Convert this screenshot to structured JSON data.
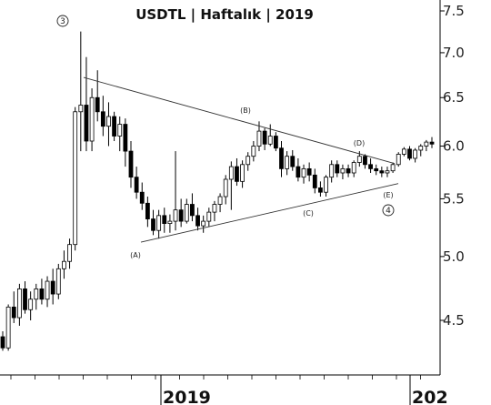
{
  "chart_data": {
    "type": "candlestick",
    "title": "USDTL | Haftalık | 2019",
    "y_scale": "log",
    "ylim": [
      4.22,
      7.6
    ],
    "y_ticks": [
      "7.5",
      "7.0",
      "6.5",
      "6.0",
      "5.5",
      "5.0",
      "4.5"
    ],
    "x_ticks": [
      "2019",
      "202"
    ],
    "wave_labels": [
      "3",
      "(A)",
      "(B)",
      "(C)",
      "(D)",
      "(E)",
      "4"
    ],
    "ohlc": [
      [
        4.38,
        4.42,
        4.28,
        4.3
      ],
      [
        4.3,
        4.62,
        4.28,
        4.6
      ],
      [
        4.6,
        4.72,
        4.48,
        4.52
      ],
      [
        4.52,
        4.78,
        4.46,
        4.74
      ],
      [
        4.74,
        4.8,
        4.55,
        4.58
      ],
      [
        4.58,
        4.72,
        4.5,
        4.66
      ],
      [
        4.66,
        4.78,
        4.58,
        4.74
      ],
      [
        4.74,
        4.82,
        4.62,
        4.66
      ],
      [
        4.66,
        4.84,
        4.6,
        4.8
      ],
      [
        4.8,
        4.9,
        4.62,
        4.7
      ],
      [
        4.7,
        4.94,
        4.66,
        4.9
      ],
      [
        4.9,
        5.05,
        4.82,
        4.96
      ],
      [
        4.96,
        5.15,
        4.9,
        5.1
      ],
      [
        5.1,
        6.4,
        5.05,
        6.35
      ],
      [
        6.35,
        7.25,
        5.95,
        6.42
      ],
      [
        6.42,
        6.95,
        5.95,
        6.05
      ],
      [
        6.05,
        6.6,
        5.95,
        6.5
      ],
      [
        6.5,
        6.8,
        6.25,
        6.35
      ],
      [
        6.35,
        6.52,
        6.1,
        6.2
      ],
      [
        6.2,
        6.45,
        6.0,
        6.3
      ],
      [
        6.3,
        6.35,
        6.05,
        6.1
      ],
      [
        6.1,
        6.3,
        5.95,
        6.22
      ],
      [
        6.22,
        6.28,
        5.8,
        5.95
      ],
      [
        5.95,
        6.05,
        5.6,
        5.7
      ],
      [
        5.7,
        5.8,
        5.5,
        5.56
      ],
      [
        5.56,
        5.65,
        5.4,
        5.46
      ],
      [
        5.46,
        5.52,
        5.25,
        5.32
      ],
      [
        5.32,
        5.4,
        5.18,
        5.22
      ],
      [
        5.22,
        5.4,
        5.15,
        5.35
      ],
      [
        5.35,
        5.42,
        5.2,
        5.28
      ],
      [
        5.28,
        5.36,
        5.2,
        5.3
      ],
      [
        5.3,
        5.95,
        5.22,
        5.4
      ],
      [
        5.4,
        5.5,
        5.25,
        5.3
      ],
      [
        5.3,
        5.5,
        5.28,
        5.45
      ],
      [
        5.45,
        5.55,
        5.3,
        5.35
      ],
      [
        5.35,
        5.42,
        5.22,
        5.26
      ],
      [
        5.26,
        5.35,
        5.2,
        5.3
      ],
      [
        5.3,
        5.42,
        5.25,
        5.38
      ],
      [
        5.38,
        5.48,
        5.3,
        5.45
      ],
      [
        5.45,
        5.55,
        5.38,
        5.52
      ],
      [
        5.52,
        5.72,
        5.45,
        5.68
      ],
      [
        5.68,
        5.85,
        5.4,
        5.8
      ],
      [
        5.8,
        5.88,
        5.62,
        5.66
      ],
      [
        5.66,
        5.86,
        5.6,
        5.82
      ],
      [
        5.82,
        5.94,
        5.76,
        5.9
      ],
      [
        5.9,
        6.05,
        5.85,
        6.0
      ],
      [
        6.0,
        6.25,
        5.95,
        6.15
      ],
      [
        6.15,
        6.18,
        5.96,
        6.02
      ],
      [
        6.02,
        6.22,
        6.0,
        6.1
      ],
      [
        6.1,
        6.14,
        5.95,
        5.98
      ],
      [
        5.98,
        6.05,
        5.7,
        5.78
      ],
      [
        5.78,
        5.95,
        5.72,
        5.9
      ],
      [
        5.9,
        5.96,
        5.76,
        5.8
      ],
      [
        5.8,
        5.88,
        5.66,
        5.7
      ],
      [
        5.7,
        5.82,
        5.64,
        5.78
      ],
      [
        5.78,
        5.84,
        5.66,
        5.72
      ],
      [
        5.72,
        5.78,
        5.55,
        5.6
      ],
      [
        5.6,
        5.66,
        5.52,
        5.56
      ],
      [
        5.56,
        5.72,
        5.52,
        5.7
      ],
      [
        5.7,
        5.86,
        5.65,
        5.82
      ],
      [
        5.82,
        5.86,
        5.7,
        5.74
      ],
      [
        5.74,
        5.82,
        5.68,
        5.78
      ],
      [
        5.78,
        5.82,
        5.7,
        5.74
      ],
      [
        5.74,
        5.86,
        5.7,
        5.84
      ],
      [
        5.84,
        5.95,
        5.8,
        5.9
      ],
      [
        5.9,
        5.92,
        5.78,
        5.82
      ],
      [
        5.82,
        5.88,
        5.74,
        5.78
      ],
      [
        5.78,
        5.82,
        5.72,
        5.76
      ],
      [
        5.76,
        5.8,
        5.7,
        5.74
      ],
      [
        5.74,
        5.8,
        5.7,
        5.76
      ],
      [
        5.76,
        5.84,
        5.74,
        5.82
      ],
      [
        5.82,
        5.94,
        5.8,
        5.92
      ],
      [
        5.92,
        5.99,
        5.9,
        5.97
      ],
      [
        5.97,
        6.0,
        5.86,
        5.88
      ],
      [
        5.88,
        5.98,
        5.84,
        5.96
      ],
      [
        5.96,
        6.02,
        5.9,
        6.0
      ],
      [
        6.0,
        6.06,
        5.95,
        6.04
      ],
      [
        6.04,
        6.09,
        5.98,
        6.02
      ]
    ]
  }
}
